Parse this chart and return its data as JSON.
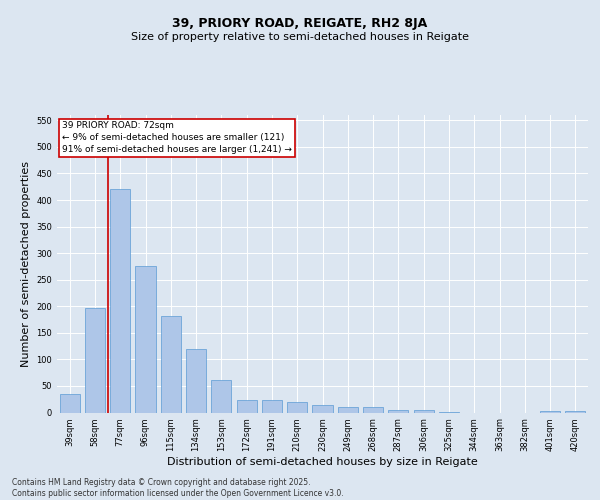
{
  "title_line1": "39, PRIORY ROAD, REIGATE, RH2 8JA",
  "title_line2": "Size of property relative to semi-detached houses in Reigate",
  "xlabel": "Distribution of semi-detached houses by size in Reigate",
  "ylabel": "Number of semi-detached properties",
  "categories": [
    "39sqm",
    "58sqm",
    "77sqm",
    "96sqm",
    "115sqm",
    "134sqm",
    "153sqm",
    "172sqm",
    "191sqm",
    "210sqm",
    "230sqm",
    "249sqm",
    "268sqm",
    "287sqm",
    "306sqm",
    "325sqm",
    "344sqm",
    "363sqm",
    "382sqm",
    "401sqm",
    "420sqm"
  ],
  "values": [
    35,
    197,
    420,
    275,
    181,
    120,
    62,
    24,
    23,
    20,
    15,
    10,
    10,
    5,
    4,
    1,
    0,
    0,
    0,
    3,
    3
  ],
  "bar_color": "#aec6e8",
  "bar_edge_color": "#5b9bd5",
  "vline_x": 1.5,
  "vline_color": "#cc0000",
  "annotation_text": "39 PRIORY ROAD: 72sqm\n← 9% of semi-detached houses are smaller (121)\n91% of semi-detached houses are larger (1,241) →",
  "annotation_box_facecolor": "#ffffff",
  "annotation_box_edgecolor": "#cc0000",
  "ylim": [
    0,
    560
  ],
  "yticks": [
    0,
    50,
    100,
    150,
    200,
    250,
    300,
    350,
    400,
    450,
    500,
    550
  ],
  "bg_color": "#dce6f1",
  "title_fontsize": 9,
  "subtitle_fontsize": 8,
  "tick_fontsize": 6,
  "label_fontsize": 8,
  "annotation_fontsize": 6.5,
  "footer_text": "Contains HM Land Registry data © Crown copyright and database right 2025.\nContains public sector information licensed under the Open Government Licence v3.0.",
  "footer_fontsize": 5.5
}
